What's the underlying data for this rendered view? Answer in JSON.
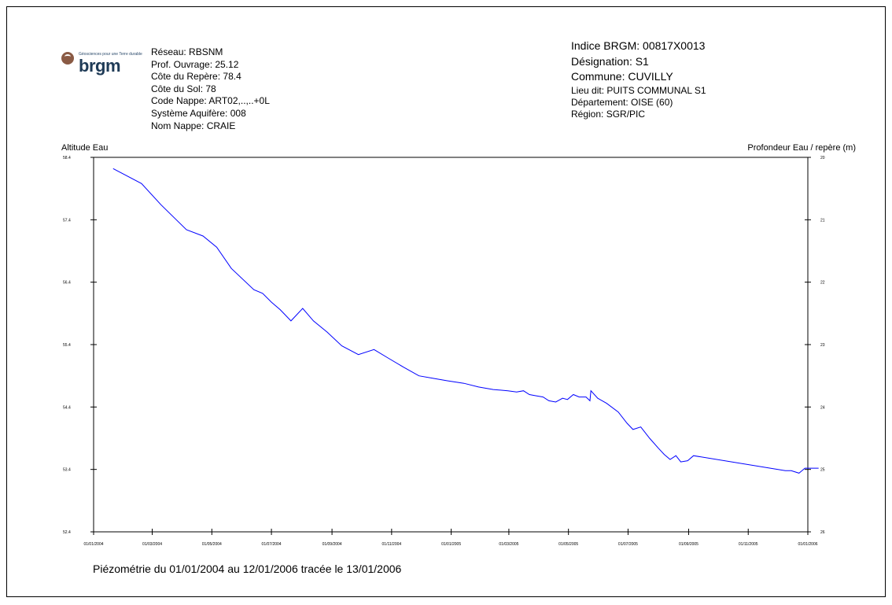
{
  "logo": {
    "word": "brgm",
    "tagline": "Géosciences pour une Terre durable"
  },
  "station": {
    "reseau": "Réseau: RBSNM",
    "prof_ouvrage": "Prof. Ouvrage: 25.12",
    "cote_repere": "Côte du Repère: 78.4",
    "cote_sol": "Côte du Sol: 78",
    "code_nappe": "Code Nappe: ART02,..,..+0L",
    "systeme_aquifere": "Système Aquifère: 008",
    "nom_nappe": "Nom Nappe: CRAIE"
  },
  "identity": {
    "indice": "Indice BRGM: 00817X0013",
    "designation": "Désignation: S1",
    "commune": "Commune: CUVILLY",
    "lieu_dit": "Lieu dit: PUITS COMMUNAL S1",
    "departement": "Département: OISE (60)",
    "region": "Région: SGR/PIC"
  },
  "footer": "Piézométrie du 01/01/2004 au 12/01/2006 tracée le 13/01/2006",
  "colors": {
    "series": "#0000ff",
    "axis": "#000000"
  },
  "chart_data": {
    "type": "line",
    "ylabel": "Altitude Eau",
    "y2label": "Profondeur Eau / repère (m)",
    "ylim": [
      52.4,
      58.4
    ],
    "y2lim": [
      26,
      20
    ],
    "y_ticks": [
      "52.4",
      "53.4",
      "54.4",
      "55.4",
      "56.4",
      "57.4",
      "58.4"
    ],
    "y2_ticks": [
      "26",
      "25",
      "24",
      "23",
      "22",
      "21",
      "20"
    ],
    "x_ticks": [
      "01/01/2004",
      "01/03/2004",
      "01/05/2004",
      "01/07/2004",
      "01/09/2004",
      "01/11/2004",
      "01/01/2005",
      "01/03/2005",
      "01/05/2005",
      "01/07/2005",
      "01/09/2005",
      "01/11/2005",
      "01/01/2006"
    ],
    "xlim": [
      "2004-01-01",
      "2006-01-01"
    ],
    "grid": false,
    "series": [
      {
        "x": [
          "2004-01-21",
          "2004-02-19",
          "2004-03-10",
          "2004-04-05",
          "2004-04-22",
          "2004-05-06",
          "2004-05-21",
          "2004-06-13",
          "2004-06-22",
          "2004-07-01",
          "2004-07-10",
          "2004-07-21",
          "2004-08-02",
          "2004-08-13",
          "2004-08-27",
          "2004-09-11",
          "2004-09-28",
          "2004-10-14",
          "2004-10-29",
          "2004-11-13",
          "2004-11-29",
          "2004-12-13",
          "2004-12-28",
          "2005-01-14",
          "2005-01-29",
          "2005-02-13",
          "2005-02-28",
          "2005-03-09",
          "2005-03-16",
          "2005-03-22",
          "2005-03-29",
          "2005-04-05",
          "2005-04-11",
          "2005-04-18",
          "2005-04-25",
          "2005-04-30",
          "2005-05-06",
          "2005-05-12",
          "2005-05-19",
          "2005-05-23",
          "2005-05-24",
          "2005-05-31",
          "2005-06-09",
          "2005-06-21",
          "2005-06-30",
          "2005-07-06",
          "2005-07-14",
          "2005-07-23",
          "2005-08-01",
          "2005-08-07",
          "2005-08-13",
          "2005-08-19",
          "2005-08-24",
          "2005-08-31",
          "2005-09-06",
          "2005-12-09",
          "2005-12-15",
          "2005-12-23",
          "2005-12-29",
          "2006-01-12"
        ],
        "y": [
          58.22,
          57.98,
          57.64,
          57.24,
          57.14,
          56.96,
          56.62,
          56.28,
          56.22,
          56.08,
          55.96,
          55.78,
          55.98,
          55.78,
          55.6,
          55.38,
          55.24,
          55.32,
          55.18,
          55.04,
          54.9,
          54.86,
          54.82,
          54.78,
          54.72,
          54.68,
          54.66,
          54.64,
          54.66,
          54.6,
          54.58,
          54.56,
          54.5,
          54.48,
          54.54,
          54.52,
          54.6,
          54.56,
          54.56,
          54.5,
          54.66,
          54.54,
          54.46,
          54.32,
          54.14,
          54.04,
          54.08,
          53.9,
          53.74,
          53.64,
          53.56,
          53.62,
          53.52,
          53.54,
          53.62,
          53.38,
          53.38,
          53.34,
          53.42,
          53.42
        ]
      }
    ]
  }
}
